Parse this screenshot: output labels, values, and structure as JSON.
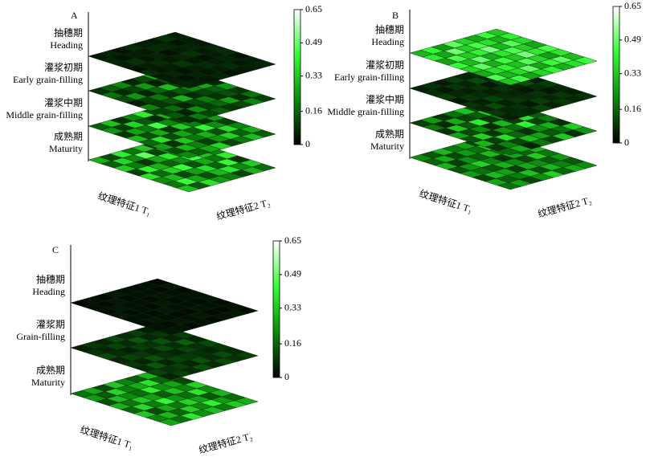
{
  "chart_data": [
    {
      "type": "heatmap3d",
      "panel": "A",
      "x_label": "纹理特征1 T₁",
      "y_label": "纹理特征2 T₂",
      "clim": [
        0,
        0.65
      ],
      "cticks": [
        0,
        0.16,
        0.33,
        0.49,
        0.65
      ],
      "colormap": [
        "#000000",
        "#0a8a0a",
        "#33ff33",
        "#ffffff"
      ],
      "layers": [
        {
          "name_zh": "抽穗期",
          "name_en": "Heading",
          "values": [
            [
              0.04,
              0.06,
              0.03,
              0.07,
              0.05,
              0.04,
              0.08,
              0.05
            ],
            [
              0.06,
              0.03,
              0.05,
              0.04,
              0.07,
              0.06,
              0.03,
              0.05
            ],
            [
              0.05,
              0.08,
              0.04,
              0.06,
              0.03,
              0.05,
              0.06,
              0.04
            ],
            [
              0.03,
              0.05,
              0.07,
              0.04,
              0.06,
              0.08,
              0.04,
              0.06
            ],
            [
              0.07,
              0.04,
              0.05,
              0.09,
              0.04,
              0.03,
              0.05,
              0.07
            ],
            [
              0.04,
              0.06,
              0.03,
              0.05,
              0.07,
              0.05,
              0.06,
              0.03
            ],
            [
              0.05,
              0.03,
              0.06,
              0.04,
              0.05,
              0.07,
              0.04,
              0.05
            ],
            [
              0.06,
              0.05,
              0.04,
              0.06,
              0.03,
              0.04,
              0.05,
              0.06
            ]
          ]
        },
        {
          "name_zh": "灌浆初期",
          "name_en": "Early grain-filling",
          "values": [
            [
              0.08,
              0.15,
              0.22,
              0.06,
              0.12,
              0.28,
              0.09,
              0.14
            ],
            [
              0.18,
              0.07,
              0.11,
              0.25,
              0.05,
              0.13,
              0.2,
              0.08
            ],
            [
              0.12,
              0.24,
              0.06,
              0.16,
              0.31,
              0.09,
              0.07,
              0.19
            ],
            [
              0.05,
              0.1,
              0.19,
              0.08,
              0.14,
              0.22,
              0.27,
              0.06
            ],
            [
              0.21,
              0.09,
              0.13,
              0.29,
              0.07,
              0.11,
              0.15,
              0.24
            ],
            [
              0.1,
              0.17,
              0.06,
              0.12,
              0.2,
              0.08,
              0.13,
              0.09
            ],
            [
              0.14,
              0.05,
              0.23,
              0.1,
              0.16,
              0.26,
              0.07,
              0.18
            ],
            [
              0.07,
              0.19,
              0.11,
              0.15,
              0.09,
              0.12,
              0.21,
              0.1
            ]
          ]
        },
        {
          "name_zh": "灌浆中期",
          "name_en": "Middle grain-filling",
          "values": [
            [
              0.15,
              0.32,
              0.08,
              0.21,
              0.4,
              0.12,
              0.27,
              0.09
            ],
            [
              0.24,
              0.1,
              0.36,
              0.14,
              0.07,
              0.29,
              0.18,
              0.33
            ],
            [
              0.09,
              0.26,
              0.19,
              0.45,
              0.22,
              0.11,
              0.35,
              0.16
            ],
            [
              0.31,
              0.13,
              0.28,
              0.09,
              0.34,
              0.2,
              0.08,
              0.25
            ],
            [
              0.17,
              0.38,
              0.12,
              0.27,
              0.15,
              0.42,
              0.23,
              0.1
            ],
            [
              0.26,
              0.08,
              0.33,
              0.19,
              0.29,
              0.13,
              0.37,
              0.21
            ],
            [
              0.12,
              0.3,
              0.21,
              0.1,
              0.24,
              0.35,
              0.16,
              0.28
            ],
            [
              0.22,
              0.15,
              0.27,
              0.36,
              0.11,
              0.19,
              0.31,
              0.14
            ]
          ]
        },
        {
          "name_zh": "成熟期",
          "name_en": "Maturity",
          "values": [
            [
              0.28,
              0.12,
              0.4,
              0.19,
              0.33,
              0.08,
              0.25,
              0.37
            ],
            [
              0.15,
              0.36,
              0.22,
              0.48,
              0.11,
              0.3,
              0.42,
              0.18
            ],
            [
              0.34,
              0.2,
              0.09,
              0.27,
              0.39,
              0.24,
              0.14,
              0.31
            ],
            [
              0.1,
              0.41,
              0.29,
              0.16,
              0.23,
              0.45,
              0.32,
              0.21
            ],
            [
              0.38,
              0.17,
              0.35,
              0.44,
              0.13,
              0.28,
              0.19,
              0.4
            ],
            [
              0.23,
              0.31,
              0.12,
              0.26,
              0.37,
              0.16,
              0.43,
              0.09
            ],
            [
              0.19,
              0.44,
              0.27,
              0.13,
              0.3,
              0.39,
              0.22,
              0.34
            ],
            [
              0.32,
              0.14,
              0.38,
              0.25,
              0.2,
              0.11,
              0.29,
              0.17
            ]
          ]
        }
      ]
    },
    {
      "type": "heatmap3d",
      "panel": "B",
      "x_label": "纹理特征1 T₁",
      "y_label": "纹理特征2 T₂",
      "clim": [
        0,
        0.65
      ],
      "cticks": [
        0,
        0.16,
        0.33,
        0.49,
        0.65
      ],
      "colormap": [
        "#000000",
        "#0a8a0a",
        "#33ff33",
        "#ffffff"
      ],
      "layers": [
        {
          "name_zh": "抽穗期",
          "name_en": "Heading",
          "values": [
            [
              0.3,
              0.42,
              0.25,
              0.48,
              0.36,
              0.28,
              0.44,
              0.33
            ],
            [
              0.4,
              0.27,
              0.5,
              0.35,
              0.45,
              0.38,
              0.29,
              0.41
            ],
            [
              0.26,
              0.46,
              0.34,
              0.41,
              0.52,
              0.3,
              0.47,
              0.37
            ],
            [
              0.43,
              0.31,
              0.49,
              0.28,
              0.39,
              0.46,
              0.35,
              0.27
            ],
            [
              0.35,
              0.48,
              0.29,
              0.44,
              0.33,
              0.51,
              0.4,
              0.45
            ],
            [
              0.28,
              0.38,
              0.42,
              0.32,
              0.47,
              0.36,
              0.26,
              0.39
            ],
            [
              0.46,
              0.3,
              0.37,
              0.49,
              0.27,
              0.43,
              0.48,
              0.31
            ],
            [
              0.33,
              0.45,
              0.27,
              0.36,
              0.42,
              0.29,
              0.38,
              0.44
            ]
          ]
        },
        {
          "name_zh": "灌浆初期",
          "name_en": "Early grain-filling",
          "values": [
            [
              0.05,
              0.08,
              0.04,
              0.1,
              0.06,
              0.07,
              0.05,
              0.09
            ],
            [
              0.07,
              0.04,
              0.09,
              0.06,
              0.12,
              0.05,
              0.08,
              0.06
            ],
            [
              0.1,
              0.06,
              0.05,
              0.08,
              0.04,
              0.11,
              0.06,
              0.07
            ],
            [
              0.04,
              0.09,
              0.07,
              0.05,
              0.08,
              0.06,
              0.13,
              0.05
            ],
            [
              0.08,
              0.05,
              0.11,
              0.07,
              0.06,
              0.04,
              0.07,
              0.1
            ],
            [
              0.06,
              0.12,
              0.05,
              0.09,
              0.07,
              0.08,
              0.04,
              0.06
            ],
            [
              0.09,
              0.06,
              0.08,
              0.04,
              0.1,
              0.06,
              0.09,
              0.05
            ],
            [
              0.05,
              0.07,
              0.06,
              0.11,
              0.05,
              0.09,
              0.06,
              0.08
            ]
          ]
        },
        {
          "name_zh": "灌浆中期",
          "name_en": "Middle grain-filling",
          "values": [
            [
              0.1,
              0.25,
              0.08,
              0.18,
              0.32,
              0.12,
              0.06,
              0.21
            ],
            [
              0.19,
              0.07,
              0.28,
              0.11,
              0.15,
              0.36,
              0.22,
              0.09
            ],
            [
              0.08,
              0.33,
              0.14,
              0.4,
              0.09,
              0.2,
              0.13,
              0.27
            ],
            [
              0.26,
              0.12,
              0.22,
              0.07,
              0.3,
              0.1,
              0.38,
              0.15
            ],
            [
              0.13,
              0.35,
              0.09,
              0.24,
              0.17,
              0.42,
              0.11,
              0.2
            ],
            [
              0.3,
              0.1,
              0.37,
              0.16,
              0.08,
              0.23,
              0.29,
              0.07
            ],
            [
              0.09,
              0.21,
              0.12,
              0.31,
              0.26,
              0.14,
              0.18,
              0.34
            ],
            [
              0.17,
              0.28,
              0.06,
              0.19,
              0.11,
              0.33,
              0.08,
              0.24
            ]
          ]
        },
        {
          "name_zh": "成熟期",
          "name_en": "Maturity",
          "values": [
            [
              0.22,
              0.14,
              0.3,
              0.19,
              0.26,
              0.11,
              0.24,
              0.17
            ],
            [
              0.16,
              0.28,
              0.12,
              0.25,
              0.18,
              0.33,
              0.13,
              0.27
            ],
            [
              0.29,
              0.1,
              0.23,
              0.15,
              0.31,
              0.2,
              0.26,
              0.12
            ],
            [
              0.13,
              0.24,
              0.35,
              0.21,
              0.09,
              0.27,
              0.16,
              0.3
            ],
            [
              0.25,
              0.18,
              0.14,
              0.29,
              0.22,
              0.12,
              0.34,
              0.19
            ],
            [
              0.11,
              0.31,
              0.26,
              0.1,
              0.28,
              0.23,
              0.15,
              0.25
            ],
            [
              0.27,
              0.15,
              0.2,
              0.32,
              0.13,
              0.3,
              0.21,
              0.14
            ],
            [
              0.18,
              0.26,
              0.11,
              0.23,
              0.35,
              0.16,
              0.28,
              0.22
            ]
          ]
        }
      ]
    },
    {
      "type": "heatmap3d",
      "panel": "C",
      "x_label": "纹理特征1 T₁",
      "y_label": "纹理特征2 T₂",
      "clim": [
        0,
        0.65
      ],
      "cticks": [
        0,
        0.16,
        0.33,
        0.49,
        0.65
      ],
      "colormap": [
        "#000000",
        "#0a8a0a",
        "#33ff33",
        "#ffffff"
      ],
      "layers": [
        {
          "name_zh": "抽穗期",
          "name_en": "Heading",
          "values": [
            [
              0.02,
              0.03,
              0.02,
              0.04,
              0.03,
              0.02,
              0.03,
              0.02
            ],
            [
              0.03,
              0.02,
              0.04,
              0.02,
              0.03,
              0.03,
              0.02,
              0.04
            ],
            [
              0.02,
              0.04,
              0.03,
              0.03,
              0.02,
              0.04,
              0.03,
              0.02
            ],
            [
              0.04,
              0.02,
              0.03,
              0.02,
              0.04,
              0.02,
              0.03,
              0.03
            ],
            [
              0.03,
              0.03,
              0.02,
              0.04,
              0.03,
              0.03,
              0.02,
              0.04
            ],
            [
              0.02,
              0.04,
              0.03,
              0.02,
              0.02,
              0.04,
              0.03,
              0.02
            ],
            [
              0.03,
              0.02,
              0.04,
              0.03,
              0.04,
              0.02,
              0.02,
              0.03
            ],
            [
              0.04,
              0.03,
              0.02,
              0.03,
              0.02,
              0.03,
              0.04,
              0.02
            ]
          ]
        },
        {
          "name_zh": "灌浆期",
          "name_en": "Grain-filling",
          "values": [
            [
              0.05,
              0.09,
              0.06,
              0.12,
              0.07,
              0.1,
              0.05,
              0.08
            ],
            [
              0.08,
              0.06,
              0.11,
              0.07,
              0.14,
              0.06,
              0.09,
              0.07
            ],
            [
              0.12,
              0.07,
              0.05,
              0.1,
              0.08,
              0.13,
              0.06,
              0.1
            ],
            [
              0.06,
              0.11,
              0.09,
              0.06,
              0.12,
              0.07,
              0.15,
              0.06
            ],
            [
              0.09,
              0.06,
              0.13,
              0.08,
              0.06,
              0.11,
              0.08,
              0.12
            ],
            [
              0.07,
              0.14,
              0.06,
              0.11,
              0.09,
              0.08,
              0.06,
              0.09
            ],
            [
              0.11,
              0.08,
              0.1,
              0.06,
              0.13,
              0.07,
              0.12,
              0.07
            ],
            [
              0.06,
              0.1,
              0.07,
              0.13,
              0.07,
              0.12,
              0.08,
              0.1
            ]
          ]
        },
        {
          "name_zh": "成熟期",
          "name_en": "Maturity",
          "values": [
            [
              0.18,
              0.27,
              0.12,
              0.33,
              0.21,
              0.15,
              0.3,
              0.19
            ],
            [
              0.25,
              0.14,
              0.36,
              0.2,
              0.28,
              0.38,
              0.16,
              0.24
            ],
            [
              0.13,
              0.31,
              0.22,
              0.17,
              0.4,
              0.23,
              0.27,
              0.11
            ],
            [
              0.29,
              0.19,
              0.34,
              0.26,
              0.15,
              0.32,
              0.21,
              0.35
            ],
            [
              0.16,
              0.37,
              0.2,
              0.42,
              0.24,
              0.18,
              0.39,
              0.22
            ],
            [
              0.33,
              0.12,
              0.28,
              0.19,
              0.36,
              0.26,
              0.14,
              0.3
            ],
            [
              0.21,
              0.3,
              0.16,
              0.35,
              0.22,
              0.41,
              0.25,
              0.17
            ],
            [
              0.27,
              0.18,
              0.39,
              0.23,
              0.31,
              0.2,
              0.34,
              0.28
            ]
          ]
        }
      ]
    }
  ]
}
